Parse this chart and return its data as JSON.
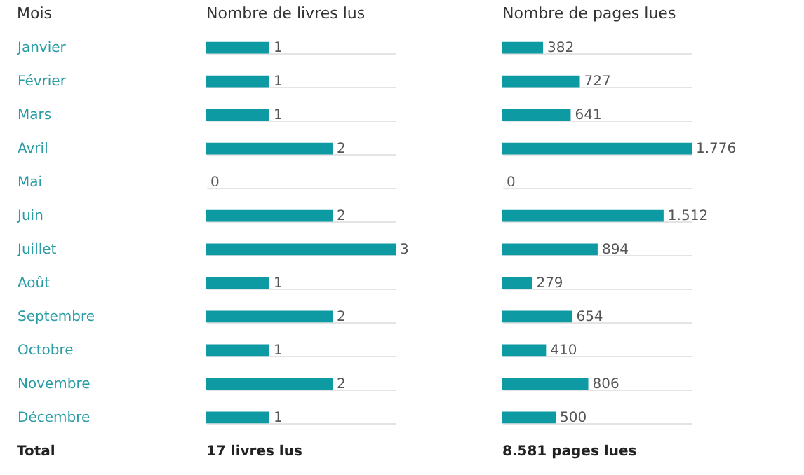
{
  "chart_data": [
    {
      "type": "bar",
      "orientation": "horizontal",
      "title": "Nombre de livres lus",
      "ylabel": "Mois",
      "categories": [
        "Janvier",
        "Février",
        "Mars",
        "Avril",
        "Mai",
        "Juin",
        "Juillet",
        "Août",
        "Septembre",
        "Octobre",
        "Novembre",
        "Décembre"
      ],
      "values": [
        1,
        1,
        1,
        2,
        0,
        2,
        3,
        1,
        2,
        1,
        2,
        1
      ],
      "color": "#0e9aa3",
      "data_labels": true,
      "grid": "y",
      "tick_labels": "y",
      "annotations": [
        "Total",
        "17 livres lus"
      ]
    },
    {
      "type": "bar",
      "orientation": "horizontal",
      "title": "Nombre de pages lues",
      "categories": [
        null,
        null,
        null,
        null,
        null,
        null,
        null,
        null,
        null,
        null,
        null,
        null
      ],
      "values": [
        382,
        727,
        641,
        1776,
        0,
        1512,
        894,
        279,
        654,
        410,
        806,
        500
      ],
      "color": "#0e9aa3",
      "value_labels": [
        "382",
        "727",
        "641",
        "1.776",
        "0",
        "1.512",
        "894",
        "279",
        "654",
        "410",
        "806",
        "500"
      ],
      "grid": "y",
      "tick_labels": false,
      "annotations": [
        "8.581 pages lues"
      ]
    }
  ]
}
